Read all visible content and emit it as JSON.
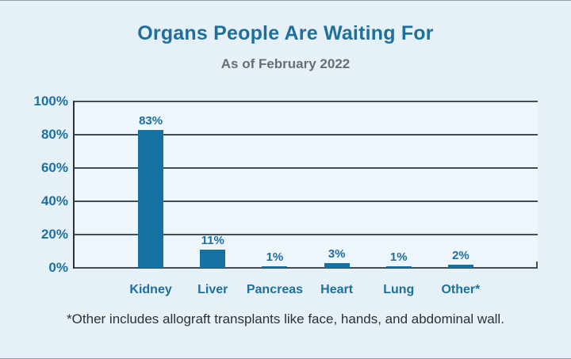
{
  "page": {
    "title": "Organs People Are Waiting For",
    "subtitle": "As of February 2022",
    "footnote": "*Other includes allograft transplants like face, hands, and abdominal wall."
  },
  "colors": {
    "background": "#e6f1f7",
    "plot_background": "#edf6fa",
    "bar": "#1571a2",
    "accent_text": "#1d6f9c",
    "subtitle_text": "#6a6e71",
    "gridline": "#434e54",
    "axis": "#2b3338",
    "footnote_text": "#2c3134"
  },
  "chart_data": {
    "type": "bar",
    "title": "Organs People Are Waiting For",
    "subtitle": "As of February 2022",
    "categories": [
      "Kidney",
      "Liver",
      "Pancreas",
      "Heart",
      "Lung",
      "Other*"
    ],
    "values": [
      83,
      11,
      1,
      3,
      1,
      2
    ],
    "value_labels": [
      "83%",
      "11%",
      "1%",
      "3%",
      "1%",
      "2%"
    ],
    "xlabel": "",
    "ylabel": "",
    "ylim": [
      0,
      100
    ],
    "y_ticks": [
      "100%",
      "80%",
      "60%",
      "40%",
      "20%",
      "0%"
    ],
    "y_tick_values": [
      100,
      80,
      60,
      40,
      20,
      0
    ],
    "grid": true,
    "legend": false,
    "footnote": "*Other includes allograft transplants like face, hands, and abdominal wall."
  }
}
